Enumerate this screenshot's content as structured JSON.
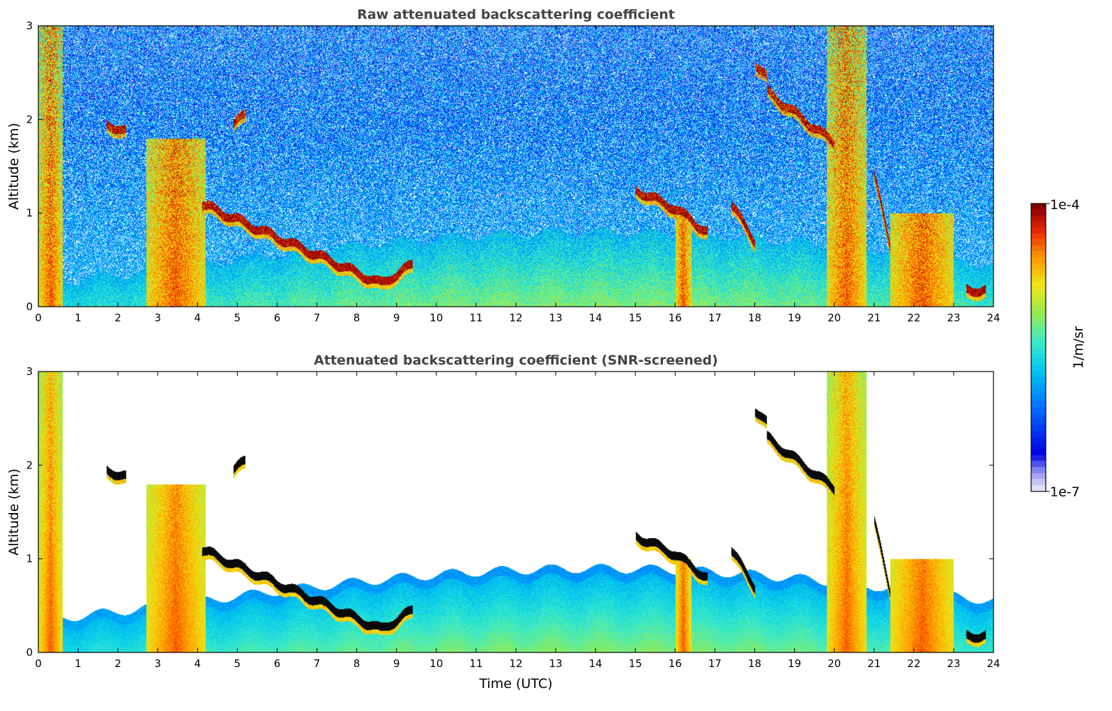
{
  "chart_data": [
    {
      "type": "heatmap",
      "title": "Raw attenuated backscattering coefficient",
      "xlabel": "",
      "ylabel": "Altitude (km)",
      "xlim": [
        0,
        24
      ],
      "ylim": [
        0,
        3
      ],
      "x_ticks": [
        "0",
        "1",
        "2",
        "3",
        "4",
        "5",
        "6",
        "7",
        "8",
        "9",
        "10",
        "11",
        "12",
        "13",
        "14",
        "15",
        "16",
        "17",
        "18",
        "19",
        "20",
        "21",
        "22",
        "23",
        "24"
      ],
      "y_ticks": [
        "0",
        "1",
        "2",
        "3"
      ],
      "mode": "raw",
      "cloud_layers": [
        {
          "start": 1.7,
          "end": 2.2,
          "alt": [
            1.95,
            1.88
          ]
        },
        {
          "start": 4.9,
          "end": 5.2,
          "alt": [
            1.95,
            2.05
          ]
        },
        {
          "start": 4.1,
          "end": 8.6,
          "alt": [
            1.1,
            0.25
          ]
        },
        {
          "start": 8.6,
          "end": 9.4,
          "alt": [
            0.25,
            0.45
          ]
        },
        {
          "start": 15.0,
          "end": 16.0,
          "alt": [
            1.25,
            1.05
          ]
        },
        {
          "start": 16.0,
          "end": 16.8,
          "alt": [
            1.05,
            0.8
          ]
        },
        {
          "start": 17.4,
          "end": 18.0,
          "alt": [
            1.1,
            0.7
          ]
        },
        {
          "start": 18.0,
          "end": 18.3,
          "alt": [
            2.6,
            2.45
          ]
        },
        {
          "start": 18.3,
          "end": 20.0,
          "alt": [
            2.3,
            1.75
          ]
        },
        {
          "start": 21.0,
          "end": 21.4,
          "alt": [
            1.4,
            0.65
          ]
        },
        {
          "start": 23.3,
          "end": 23.8,
          "alt": [
            0.18,
            0.18
          ]
        }
      ],
      "dense_columns": [
        {
          "start": 0.0,
          "end": 0.6,
          "top": 3.0
        },
        {
          "start": 2.7,
          "end": 4.2,
          "top": 1.8
        },
        {
          "start": 16.0,
          "end": 16.4,
          "top": 1.0
        },
        {
          "start": 19.8,
          "end": 20.8,
          "top": 3.0
        },
        {
          "start": 21.4,
          "end": 23.0,
          "top": 1.0
        }
      ]
    },
    {
      "type": "heatmap",
      "title": "Attenuated backscattering coefficient (SNR-screened)",
      "xlabel": "Time (UTC)",
      "ylabel": "Altitude (km)",
      "xlim": [
        0,
        24
      ],
      "ylim": [
        0,
        3
      ],
      "x_ticks": [
        "0",
        "1",
        "2",
        "3",
        "4",
        "5",
        "6",
        "7",
        "8",
        "9",
        "10",
        "11",
        "12",
        "13",
        "14",
        "15",
        "16",
        "17",
        "18",
        "19",
        "20",
        "21",
        "22",
        "23",
        "24"
      ],
      "y_ticks": [
        "0",
        "1",
        "2",
        "3"
      ],
      "mode": "screened"
    }
  ],
  "colorbar": {
    "label": "1/m/sr",
    "min_label": "1e-7",
    "max_label": "1e-4",
    "scale": "log",
    "range": [
      1e-07,
      0.0001
    ]
  }
}
